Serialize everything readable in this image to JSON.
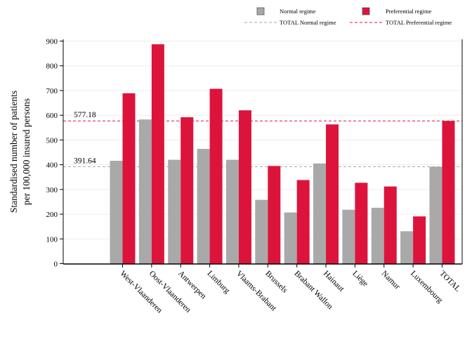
{
  "chart_data": {
    "type": "bar",
    "title": "",
    "ylabel_lines": [
      "Standardised number of patients",
      "per 100,000 insured persons"
    ],
    "xlabel": "",
    "ylim": [
      0,
      900
    ],
    "yticks": [
      0,
      100,
      200,
      300,
      400,
      500,
      600,
      700,
      800,
      900
    ],
    "grid": true,
    "legend_position": "top",
    "categories": [
      "West-Vlaanderen",
      "Oost-Vlaanderen",
      "Antwerpen",
      "Limburg",
      "Vlaams-Brabant",
      "Brussels",
      "Brabant Wallon",
      "Hainaut",
      "Liège",
      "Namur",
      "Luxembourg",
      "TOTAL"
    ],
    "series": [
      {
        "name": "Normal regime",
        "color": "#a9a9a9",
        "values": [
          416,
          583,
          420,
          464,
          420,
          258,
          207,
          405,
          218,
          226,
          131,
          392
        ]
      },
      {
        "name": "Preferential regime",
        "color": "#dc143c",
        "values": [
          689,
          887,
          592,
          707,
          620,
          395,
          338,
          563,
          327,
          312,
          191,
          577
        ]
      }
    ],
    "reference_lines": [
      {
        "name": "TOTAL Normal regime",
        "value": 391.64,
        "label": "391.64",
        "color": "#a9a9a9"
      },
      {
        "name": "TOTAL Preferential regime",
        "value": 577.18,
        "label": "577.18",
        "color": "#dc143c"
      }
    ]
  }
}
